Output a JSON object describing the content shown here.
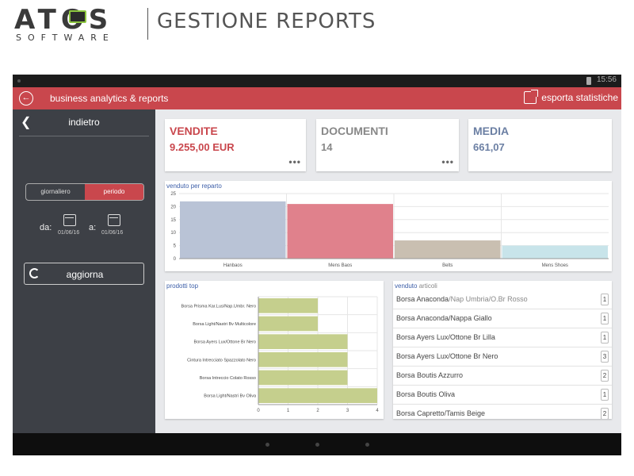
{
  "header": {
    "logo_main": "ATOS",
    "logo_sub": "SOFTWARE",
    "title": "GESTIONE REPORTS"
  },
  "statusbar": {
    "time": "15:56"
  },
  "appbar": {
    "title": "business analytics & reports",
    "export_label": "esporta statistiche",
    "color": "#c9474d"
  },
  "sidebar": {
    "back_label": "indietro",
    "seg_daily": "giornaliero",
    "seg_period": "periodo",
    "from_label": "da:",
    "from_date": "01/06/16",
    "to_label": "a:",
    "to_date": "01/06/16",
    "refresh_label": "aggiorna"
  },
  "kpis": [
    {
      "title": "VENDITE",
      "value": "9.255,00 EUR",
      "color": "#c9474d"
    },
    {
      "title": "DOCUMENTI",
      "value": "14",
      "color": "#888888"
    },
    {
      "title": "MEDIA",
      "value": "661,07",
      "color": "#6b7fa3"
    }
  ],
  "dept_chart_label": "venduto per reparto",
  "top_chart_label": "prodotti top",
  "list_label_a": "venduto",
  "list_label_b": "articoli",
  "articles": [
    {
      "name": "Borsa Anaconda",
      "variant": "/Nap Umbria/O.Br Rosso",
      "qty": "1"
    },
    {
      "name": "Borsa Anaconda/Nappa Giallo",
      "variant": "",
      "qty": "1"
    },
    {
      "name": "Borsa Ayers Lux/Ottone Br Lilla",
      "variant": "",
      "qty": "1"
    },
    {
      "name": "Borsa Ayers Lux/Ottone Br Nero",
      "variant": "",
      "qty": "3"
    },
    {
      "name": "Borsa Boutis Azzurro",
      "variant": "",
      "qty": "2"
    },
    {
      "name": "Borsa Boutis Oliva",
      "variant": "",
      "qty": "1"
    },
    {
      "name": "Borsa Capretto/Tamis Beige",
      "variant": "",
      "qty": "2"
    }
  ],
  "chart_data": [
    {
      "type": "bar",
      "title": "venduto per reparto",
      "categories": [
        "Hanbaos",
        "Mens Baos",
        "Belts",
        "Mens Shoes"
      ],
      "values": [
        22,
        21,
        7,
        5
      ],
      "colors": [
        "#b9c3d6",
        "#e0818c",
        "#c9bfb1",
        "#c8e4ea"
      ],
      "ylim": [
        0,
        25
      ],
      "yticks": [
        0,
        5,
        10,
        15,
        20,
        25
      ],
      "grid": true
    },
    {
      "type": "bar",
      "orientation": "horizontal",
      "title": "prodotti top",
      "categories": [
        "Borsa Prisma Kar.Lus/Nap.Umbr. Nero",
        "Borsa Light/Nastri Bv Multicolore",
        "Borsa Ayers Lux/Ottone Br Nero",
        "Cintura Intrecciato Spazzolato Nero",
        "Borsa Intreccio Colato Rosso",
        "Borsa Light/Nastri Bv Oliva"
      ],
      "values": [
        2,
        2,
        3,
        3,
        3,
        4
      ],
      "color": "#c5cf8d",
      "xlim": [
        0,
        4
      ],
      "xticks": [
        0,
        1,
        2,
        3,
        4
      ],
      "grid": true
    }
  ]
}
